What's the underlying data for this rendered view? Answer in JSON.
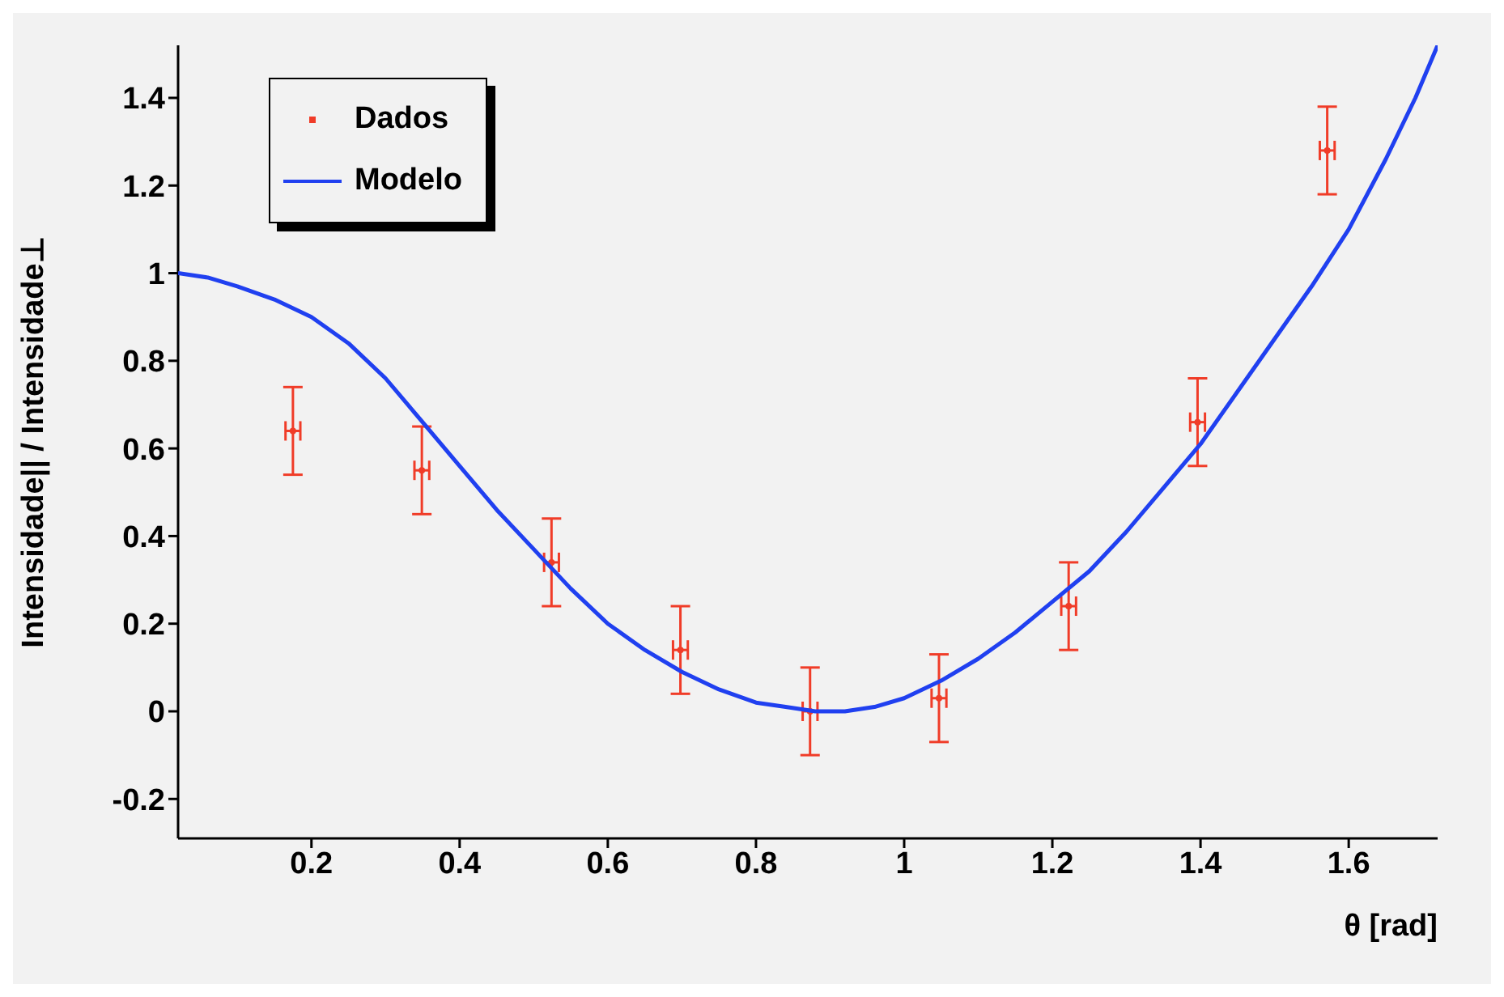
{
  "chart_data": {
    "type": "scatter",
    "xlabel": "θ [rad]",
    "ylabel": "Intensidade|| / Intensidade⊥",
    "xlim": [
      0.02,
      1.72
    ],
    "xticks": [
      0.2,
      0.4,
      0.6,
      0.8,
      1,
      1.2,
      1.4,
      1.6
    ],
    "ylim": [
      -0.29,
      1.52
    ],
    "yticks": [
      -0.2,
      0,
      0.2,
      0.4,
      0.6,
      0.8,
      1,
      1.2,
      1.4
    ],
    "grid": false,
    "legend": "top left",
    "series": [
      {
        "name": "Dados",
        "color": "#f03c28",
        "marker": "circle",
        "x": [
          0.175,
          0.349,
          0.524,
          0.698,
          0.873,
          1.047,
          1.222,
          1.396,
          1.571
        ],
        "values": [
          0.64,
          0.55,
          0.34,
          0.14,
          0.0,
          0.03,
          0.24,
          0.66,
          1.28
        ],
        "errors": [
          0.1,
          0.1,
          0.1,
          0.1,
          0.1,
          0.1,
          0.1,
          0.1,
          0.1
        ],
        "xerrors": [
          0.01,
          0.01,
          0.01,
          0.01,
          0.01,
          0.01,
          0.01,
          0.01,
          0.01
        ]
      },
      {
        "name": "Modelo",
        "type": "line",
        "color": "#2040f0",
        "marker": "none",
        "line_style": "solid",
        "x": [
          0.02,
          0.06,
          0.1,
          0.15,
          0.2,
          0.25,
          0.3,
          0.35,
          0.4,
          0.45,
          0.5,
          0.55,
          0.6,
          0.65,
          0.7,
          0.75,
          0.8,
          0.84,
          0.88,
          0.92,
          0.96,
          1.0,
          1.05,
          1.1,
          1.15,
          1.2,
          1.25,
          1.3,
          1.35,
          1.4,
          1.45,
          1.5,
          1.55,
          1.6,
          1.65,
          1.69,
          1.72
        ],
        "values": [
          1.0,
          0.99,
          0.97,
          0.94,
          0.9,
          0.84,
          0.76,
          0.66,
          0.56,
          0.46,
          0.37,
          0.28,
          0.2,
          0.14,
          0.09,
          0.05,
          0.02,
          0.01,
          0.0,
          0.0,
          0.01,
          0.03,
          0.07,
          0.12,
          0.18,
          0.25,
          0.32,
          0.41,
          0.51,
          0.61,
          0.73,
          0.85,
          0.97,
          1.1,
          1.26,
          1.4,
          1.52
        ]
      }
    ]
  }
}
